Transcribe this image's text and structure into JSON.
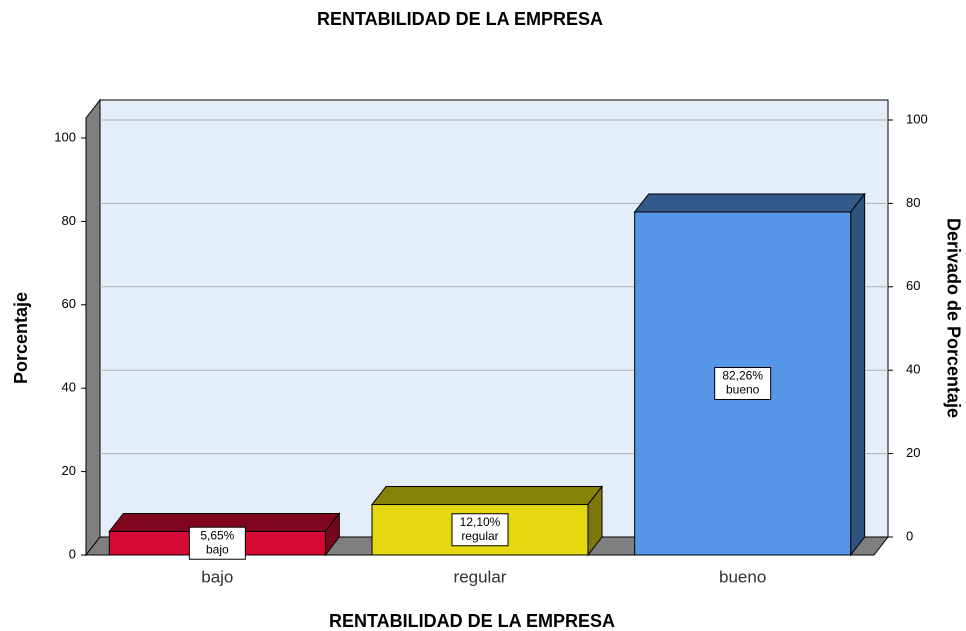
{
  "chart_data": {
    "type": "bar3d",
    "title": "RENTABILIDAD DE LA EMPRESA",
    "x_label": "RENTABILIDAD DE LA EMPRESA",
    "y_label": "Porcentaje",
    "y2_label": "Derivado de Porcentaje",
    "categories": [
      "bajo",
      "regular",
      "bueno"
    ],
    "values": [
      5.65,
      12.1,
      82.26
    ],
    "value_labels": [
      "5,65%",
      "12,10%",
      "82,26%"
    ],
    "colors": [
      "#d60a33",
      "#e5d80e",
      "#5596e6"
    ],
    "ylim": [
      0,
      100
    ],
    "yticks": [
      0,
      20,
      40,
      60,
      80,
      100
    ],
    "y2lim": [
      0,
      100
    ],
    "y2ticks": [
      0,
      20,
      40,
      60,
      80,
      100
    ],
    "grid": true
  }
}
